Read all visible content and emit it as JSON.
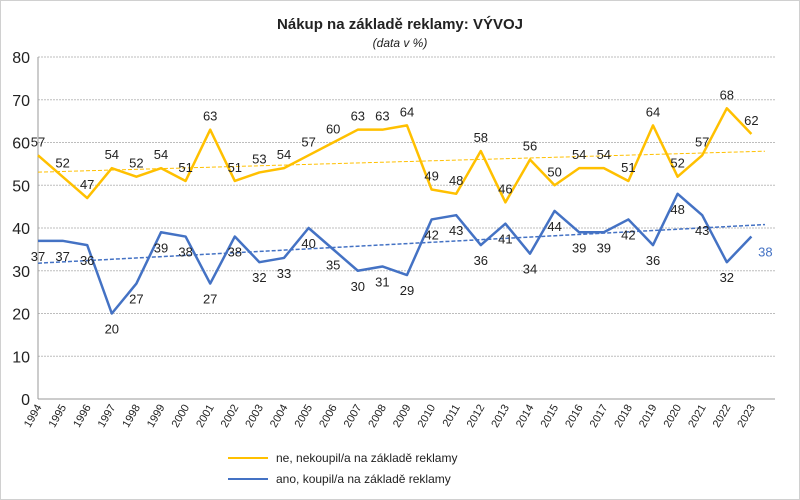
{
  "chart_data": {
    "type": "line",
    "title": "Nákup na základě reklamy: VÝVOJ",
    "subtitle": "(data v %)",
    "xlabel": "",
    "ylabel": "",
    "ylim": [
      0,
      80
    ],
    "yticks": [
      0,
      10,
      20,
      30,
      40,
      50,
      60,
      70,
      80
    ],
    "grid": true,
    "legend_position": "bottom",
    "categories": [
      "1994",
      "1995",
      "1996",
      "1997",
      "1998",
      "1999",
      "2000",
      "2001",
      "2002",
      "2003",
      "2004",
      "2005",
      "2006",
      "2007",
      "2008",
      "2009",
      "2010",
      "2011",
      "2012",
      "2013",
      "2014",
      "2015",
      "2016",
      "2017",
      "2018",
      "2019",
      "2020",
      "2021",
      "2022",
      "2023"
    ],
    "series": [
      {
        "name": "ne, nekoupil/a na základě reklamy",
        "color": "#FFC000",
        "trendline": "linear",
        "values": [
          57,
          52,
          47,
          54,
          52,
          54,
          51,
          63,
          51,
          53,
          54,
          57,
          60,
          63,
          63,
          64,
          49,
          48,
          58,
          46,
          56,
          50,
          54,
          54,
          51,
          64,
          52,
          57,
          68,
          62
        ]
      },
      {
        "name": "ano, koupil/a na základě reklamy",
        "color": "#4472C4",
        "trendline": "linear",
        "values": [
          37,
          37,
          36,
          20,
          27,
          39,
          38,
          27,
          38,
          32,
          33,
          40,
          35,
          30,
          31,
          29,
          42,
          43,
          36,
          41,
          34,
          44,
          39,
          39,
          42,
          36,
          48,
          43,
          32,
          38
        ]
      }
    ]
  }
}
